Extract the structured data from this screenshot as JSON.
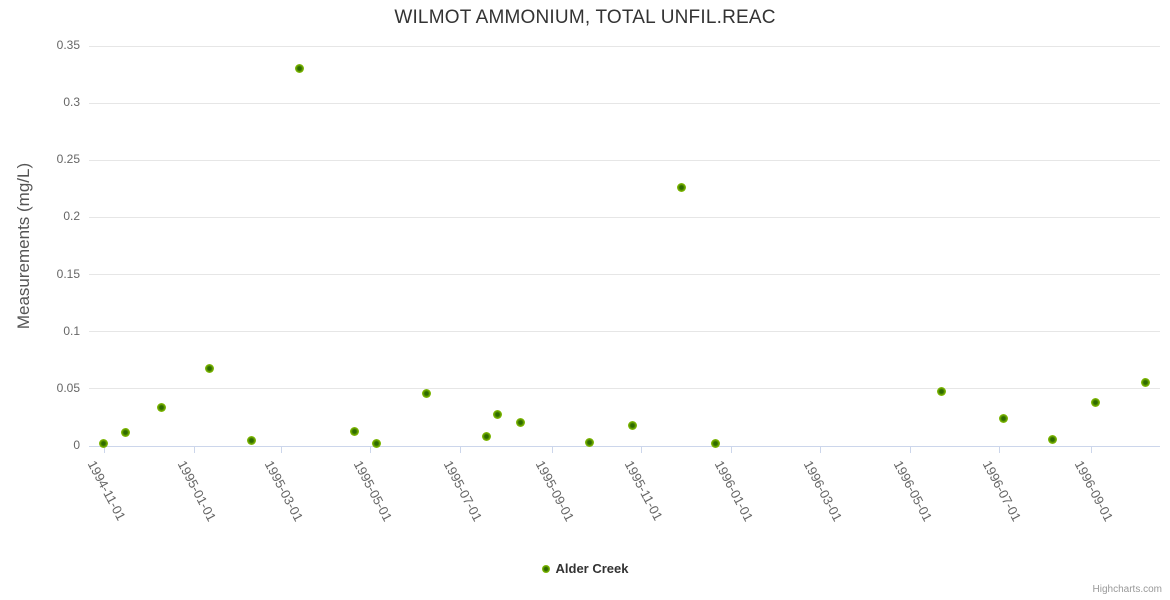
{
  "credits": {
    "label": "Highcharts.com"
  },
  "colors": {
    "series_green": "#79b301",
    "series_green_dark": "#2f6b00",
    "grid": "#e6e6e6",
    "axis_line": "#ccd6eb",
    "title_text": "#333333",
    "axis_label_text": "#666666",
    "axis_title_text": "#555555",
    "credits_text": "#999999"
  },
  "chart_data": {
    "type": "scatter",
    "title": "WILMOT AMMONIUM, TOTAL UNFIL.REAC",
    "xlabel": "",
    "ylabel": "Measurements (mg/L)",
    "xlim": [
      "1994-10-22",
      "1996-10-18"
    ],
    "ylim": [
      0,
      0.35
    ],
    "grid": "horizontal",
    "legend_position": "bottom-center",
    "x_ticks": [
      "1994-11-01",
      "1995-01-01",
      "1995-03-01",
      "1995-05-01",
      "1995-07-01",
      "1995-09-01",
      "1995-11-01",
      "1996-01-01",
      "1996-03-01",
      "1996-05-01",
      "1996-07-01",
      "1996-09-01"
    ],
    "y_ticks": [
      0,
      0.05,
      0.1,
      0.15,
      0.2,
      0.25,
      0.3,
      0.35
    ],
    "y_tick_labels": [
      "0",
      "0.05",
      "0.1",
      "0.15",
      "0.2",
      "0.25",
      "0.3",
      "0.35"
    ],
    "series": [
      {
        "name": "Alder Creek",
        "color": "#79b301",
        "points": [
          {
            "date": "1994-11-01",
            "value": 0.002
          },
          {
            "date": "1994-11-16",
            "value": 0.012
          },
          {
            "date": "1994-12-10",
            "value": 0.034
          },
          {
            "date": "1995-01-12",
            "value": 0.068
          },
          {
            "date": "1995-02-09",
            "value": 0.005
          },
          {
            "date": "1995-03-14",
            "value": 0.33
          },
          {
            "date": "1995-04-20",
            "value": 0.013
          },
          {
            "date": "1995-05-05",
            "value": 0.002
          },
          {
            "date": "1995-06-08",
            "value": 0.046
          },
          {
            "date": "1995-07-19",
            "value": 0.008
          },
          {
            "date": "1995-07-26",
            "value": 0.028
          },
          {
            "date": "1995-08-11",
            "value": 0.021
          },
          {
            "date": "1995-09-27",
            "value": 0.003
          },
          {
            "date": "1995-10-26",
            "value": 0.018
          },
          {
            "date": "1995-11-28",
            "value": 0.226
          },
          {
            "date": "1995-12-21",
            "value": 0.002
          },
          {
            "date": "1996-05-23",
            "value": 0.048
          },
          {
            "date": "1996-07-04",
            "value": 0.024
          },
          {
            "date": "1996-08-06",
            "value": 0.006
          },
          {
            "date": "1996-09-04",
            "value": 0.038
          },
          {
            "date": "1996-10-08",
            "value": 0.056
          }
        ]
      }
    ]
  }
}
